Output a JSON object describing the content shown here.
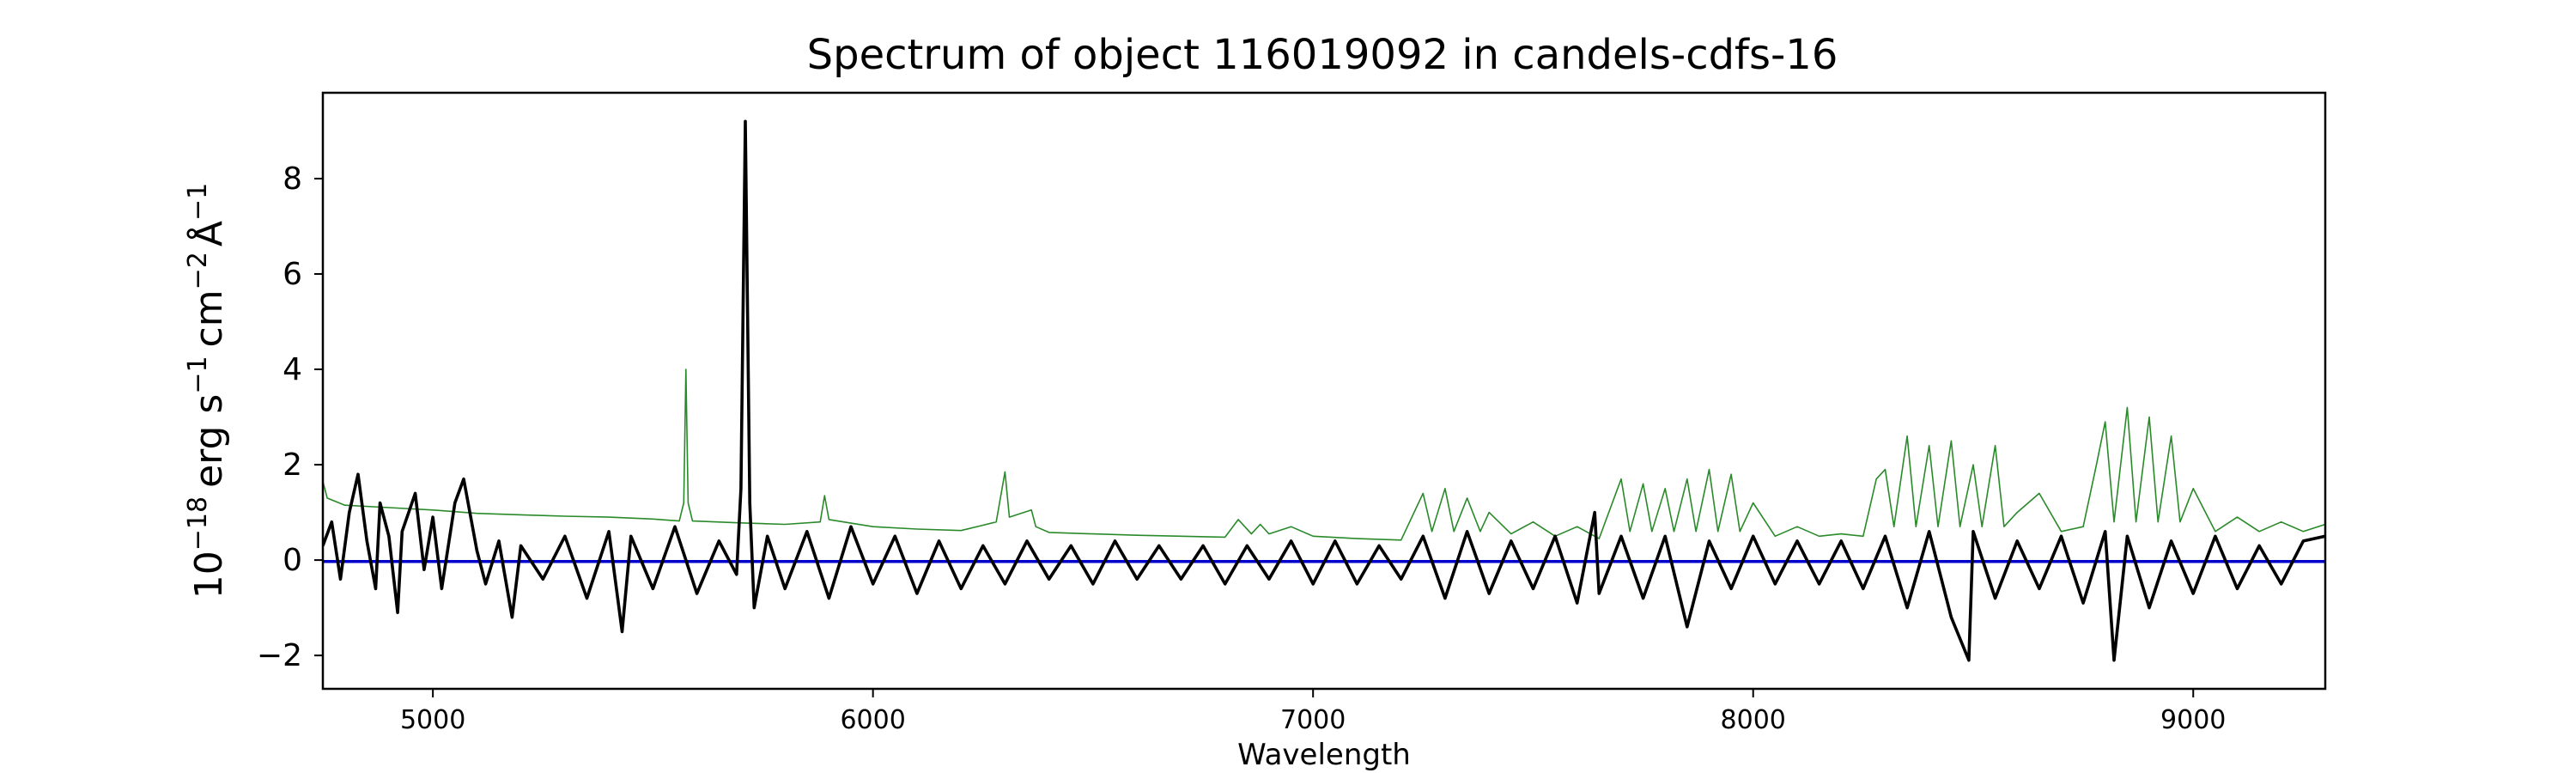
{
  "chart_data": {
    "type": "line",
    "title": "Spectrum of object 116019092 in candels-cdfs-16",
    "xlabel": "Wavelength",
    "ylabel": {
      "base": "10",
      "base_exp": "−18",
      "erg": "erg s",
      "s_exp": "−1",
      "cm": "cm",
      "cm_exp": "−2",
      "angstrom": "Å",
      "angstrom_exp": "−1"
    },
    "xlim": [
      4750,
      9300
    ],
    "ylim": [
      -2.7,
      9.8
    ],
    "xticks": [
      5000,
      6000,
      7000,
      8000,
      9000
    ],
    "yticks": [
      -2,
      0,
      2,
      4,
      6,
      8
    ],
    "ytick_labels": [
      "−2",
      "0",
      "2",
      "4",
      "6",
      "8"
    ],
    "grid": false,
    "series": [
      {
        "key": "noise",
        "color": "#2a8a2a",
        "points": [
          [
            4750,
            1.65
          ],
          [
            4760,
            1.3
          ],
          [
            4800,
            1.15
          ],
          [
            4900,
            1.1
          ],
          [
            5000,
            1.05
          ],
          [
            5100,
            0.98
          ],
          [
            5200,
            0.95
          ],
          [
            5300,
            0.92
          ],
          [
            5400,
            0.9
          ],
          [
            5500,
            0.86
          ],
          [
            5560,
            0.82
          ],
          [
            5570,
            1.2
          ],
          [
            5575,
            4.0
          ],
          [
            5580,
            1.2
          ],
          [
            5590,
            0.82
          ],
          [
            5700,
            0.78
          ],
          [
            5800,
            0.75
          ],
          [
            5880,
            0.8
          ],
          [
            5890,
            1.35
          ],
          [
            5900,
            0.85
          ],
          [
            6000,
            0.7
          ],
          [
            6100,
            0.65
          ],
          [
            6200,
            0.62
          ],
          [
            6280,
            0.8
          ],
          [
            6300,
            1.85
          ],
          [
            6310,
            0.9
          ],
          [
            6360,
            1.05
          ],
          [
            6370,
            0.7
          ],
          [
            6400,
            0.58
          ],
          [
            6500,
            0.55
          ],
          [
            6600,
            0.52
          ],
          [
            6700,
            0.5
          ],
          [
            6800,
            0.48
          ],
          [
            6830,
            0.85
          ],
          [
            6860,
            0.55
          ],
          [
            6880,
            0.75
          ],
          [
            6900,
            0.55
          ],
          [
            6950,
            0.7
          ],
          [
            7000,
            0.5
          ],
          [
            7100,
            0.45
          ],
          [
            7200,
            0.42
          ],
          [
            7250,
            1.4
          ],
          [
            7270,
            0.6
          ],
          [
            7300,
            1.5
          ],
          [
            7320,
            0.6
          ],
          [
            7350,
            1.3
          ],
          [
            7380,
            0.6
          ],
          [
            7400,
            1.0
          ],
          [
            7450,
            0.55
          ],
          [
            7500,
            0.8
          ],
          [
            7550,
            0.5
          ],
          [
            7600,
            0.7
          ],
          [
            7650,
            0.45
          ],
          [
            7700,
            1.7
          ],
          [
            7720,
            0.6
          ],
          [
            7750,
            1.6
          ],
          [
            7770,
            0.6
          ],
          [
            7800,
            1.5
          ],
          [
            7820,
            0.6
          ],
          [
            7850,
            1.7
          ],
          [
            7870,
            0.6
          ],
          [
            7900,
            1.9
          ],
          [
            7920,
            0.6
          ],
          [
            7950,
            1.8
          ],
          [
            7970,
            0.6
          ],
          [
            8000,
            1.2
          ],
          [
            8050,
            0.5
          ],
          [
            8100,
            0.7
          ],
          [
            8150,
            0.5
          ],
          [
            8200,
            0.55
          ],
          [
            8250,
            0.5
          ],
          [
            8280,
            1.7
          ],
          [
            8300,
            1.9
          ],
          [
            8320,
            0.7
          ],
          [
            8350,
            2.6
          ],
          [
            8370,
            0.7
          ],
          [
            8400,
            2.4
          ],
          [
            8420,
            0.7
          ],
          [
            8450,
            2.5
          ],
          [
            8470,
            0.7
          ],
          [
            8500,
            2.0
          ],
          [
            8520,
            0.7
          ],
          [
            8550,
            2.4
          ],
          [
            8570,
            0.7
          ],
          [
            8600,
            1.0
          ],
          [
            8650,
            1.4
          ],
          [
            8700,
            0.6
          ],
          [
            8750,
            0.7
          ],
          [
            8780,
            2.0
          ],
          [
            8800,
            2.9
          ],
          [
            8820,
            0.8
          ],
          [
            8850,
            3.2
          ],
          [
            8870,
            0.8
          ],
          [
            8900,
            3.0
          ],
          [
            8920,
            0.8
          ],
          [
            8950,
            2.6
          ],
          [
            8970,
            0.8
          ],
          [
            9000,
            1.5
          ],
          [
            9050,
            0.6
          ],
          [
            9100,
            0.9
          ],
          [
            9150,
            0.6
          ],
          [
            9200,
            0.8
          ],
          [
            9250,
            0.6
          ],
          [
            9300,
            0.75
          ]
        ]
      },
      {
        "key": "model",
        "color": "#0000cc",
        "points": [
          [
            4750,
            -0.03
          ],
          [
            9300,
            -0.03
          ]
        ]
      },
      {
        "key": "flux",
        "color": "#000000",
        "points": [
          [
            4750,
            0.3
          ],
          [
            4770,
            0.8
          ],
          [
            4790,
            -0.4
          ],
          [
            4810,
            1.0
          ],
          [
            4830,
            1.8
          ],
          [
            4850,
            0.4
          ],
          [
            4870,
            -0.6
          ],
          [
            4880,
            1.2
          ],
          [
            4900,
            0.5
          ],
          [
            4920,
            -1.1
          ],
          [
            4930,
            0.6
          ],
          [
            4960,
            1.4
          ],
          [
            4980,
            -0.2
          ],
          [
            5000,
            0.9
          ],
          [
            5020,
            -0.6
          ],
          [
            5050,
            1.2
          ],
          [
            5070,
            1.7
          ],
          [
            5100,
            0.2
          ],
          [
            5120,
            -0.5
          ],
          [
            5150,
            0.4
          ],
          [
            5180,
            -1.2
          ],
          [
            5200,
            0.3
          ],
          [
            5250,
            -0.4
          ],
          [
            5300,
            0.5
          ],
          [
            5350,
            -0.8
          ],
          [
            5400,
            0.6
          ],
          [
            5430,
            -1.5
          ],
          [
            5450,
            0.5
          ],
          [
            5500,
            -0.6
          ],
          [
            5550,
            0.7
          ],
          [
            5600,
            -0.7
          ],
          [
            5650,
            0.4
          ],
          [
            5690,
            -0.3
          ],
          [
            5700,
            1.5
          ],
          [
            5710,
            9.2
          ],
          [
            5720,
            1.2
          ],
          [
            5730,
            -1.0
          ],
          [
            5760,
            0.5
          ],
          [
            5800,
            -0.6
          ],
          [
            5850,
            0.6
          ],
          [
            5900,
            -0.8
          ],
          [
            5950,
            0.7
          ],
          [
            6000,
            -0.5
          ],
          [
            6050,
            0.5
          ],
          [
            6100,
            -0.7
          ],
          [
            6150,
            0.4
          ],
          [
            6200,
            -0.6
          ],
          [
            6250,
            0.3
          ],
          [
            6300,
            -0.5
          ],
          [
            6350,
            0.4
          ],
          [
            6400,
            -0.4
          ],
          [
            6450,
            0.3
          ],
          [
            6500,
            -0.5
          ],
          [
            6550,
            0.4
          ],
          [
            6600,
            -0.4
          ],
          [
            6650,
            0.3
          ],
          [
            6700,
            -0.4
          ],
          [
            6750,
            0.3
          ],
          [
            6800,
            -0.5
          ],
          [
            6850,
            0.3
          ],
          [
            6900,
            -0.4
          ],
          [
            6950,
            0.4
          ],
          [
            7000,
            -0.5
          ],
          [
            7050,
            0.4
          ],
          [
            7100,
            -0.5
          ],
          [
            7150,
            0.3
          ],
          [
            7200,
            -0.4
          ],
          [
            7250,
            0.5
          ],
          [
            7300,
            -0.8
          ],
          [
            7350,
            0.6
          ],
          [
            7400,
            -0.7
          ],
          [
            7450,
            0.4
          ],
          [
            7500,
            -0.6
          ],
          [
            7550,
            0.5
          ],
          [
            7600,
            -0.9
          ],
          [
            7640,
            1.0
          ],
          [
            7650,
            -0.7
          ],
          [
            7700,
            0.5
          ],
          [
            7750,
            -0.8
          ],
          [
            7800,
            0.5
          ],
          [
            7850,
            -1.4
          ],
          [
            7900,
            0.4
          ],
          [
            7950,
            -0.6
          ],
          [
            8000,
            0.5
          ],
          [
            8050,
            -0.5
          ],
          [
            8100,
            0.4
          ],
          [
            8150,
            -0.5
          ],
          [
            8200,
            0.4
          ],
          [
            8250,
            -0.6
          ],
          [
            8300,
            0.5
          ],
          [
            8350,
            -1.0
          ],
          [
            8400,
            0.6
          ],
          [
            8450,
            -1.2
          ],
          [
            8490,
            -2.1
          ],
          [
            8500,
            0.6
          ],
          [
            8550,
            -0.8
          ],
          [
            8600,
            0.4
          ],
          [
            8650,
            -0.6
          ],
          [
            8700,
            0.5
          ],
          [
            8750,
            -0.9
          ],
          [
            8800,
            0.6
          ],
          [
            8820,
            -2.1
          ],
          [
            8850,
            0.5
          ],
          [
            8900,
            -1.0
          ],
          [
            8950,
            0.4
          ],
          [
            9000,
            -0.7
          ],
          [
            9050,
            0.5
          ],
          [
            9100,
            -0.6
          ],
          [
            9150,
            0.3
          ],
          [
            9200,
            -0.5
          ],
          [
            9250,
            0.4
          ],
          [
            9300,
            0.5
          ]
        ]
      }
    ]
  }
}
